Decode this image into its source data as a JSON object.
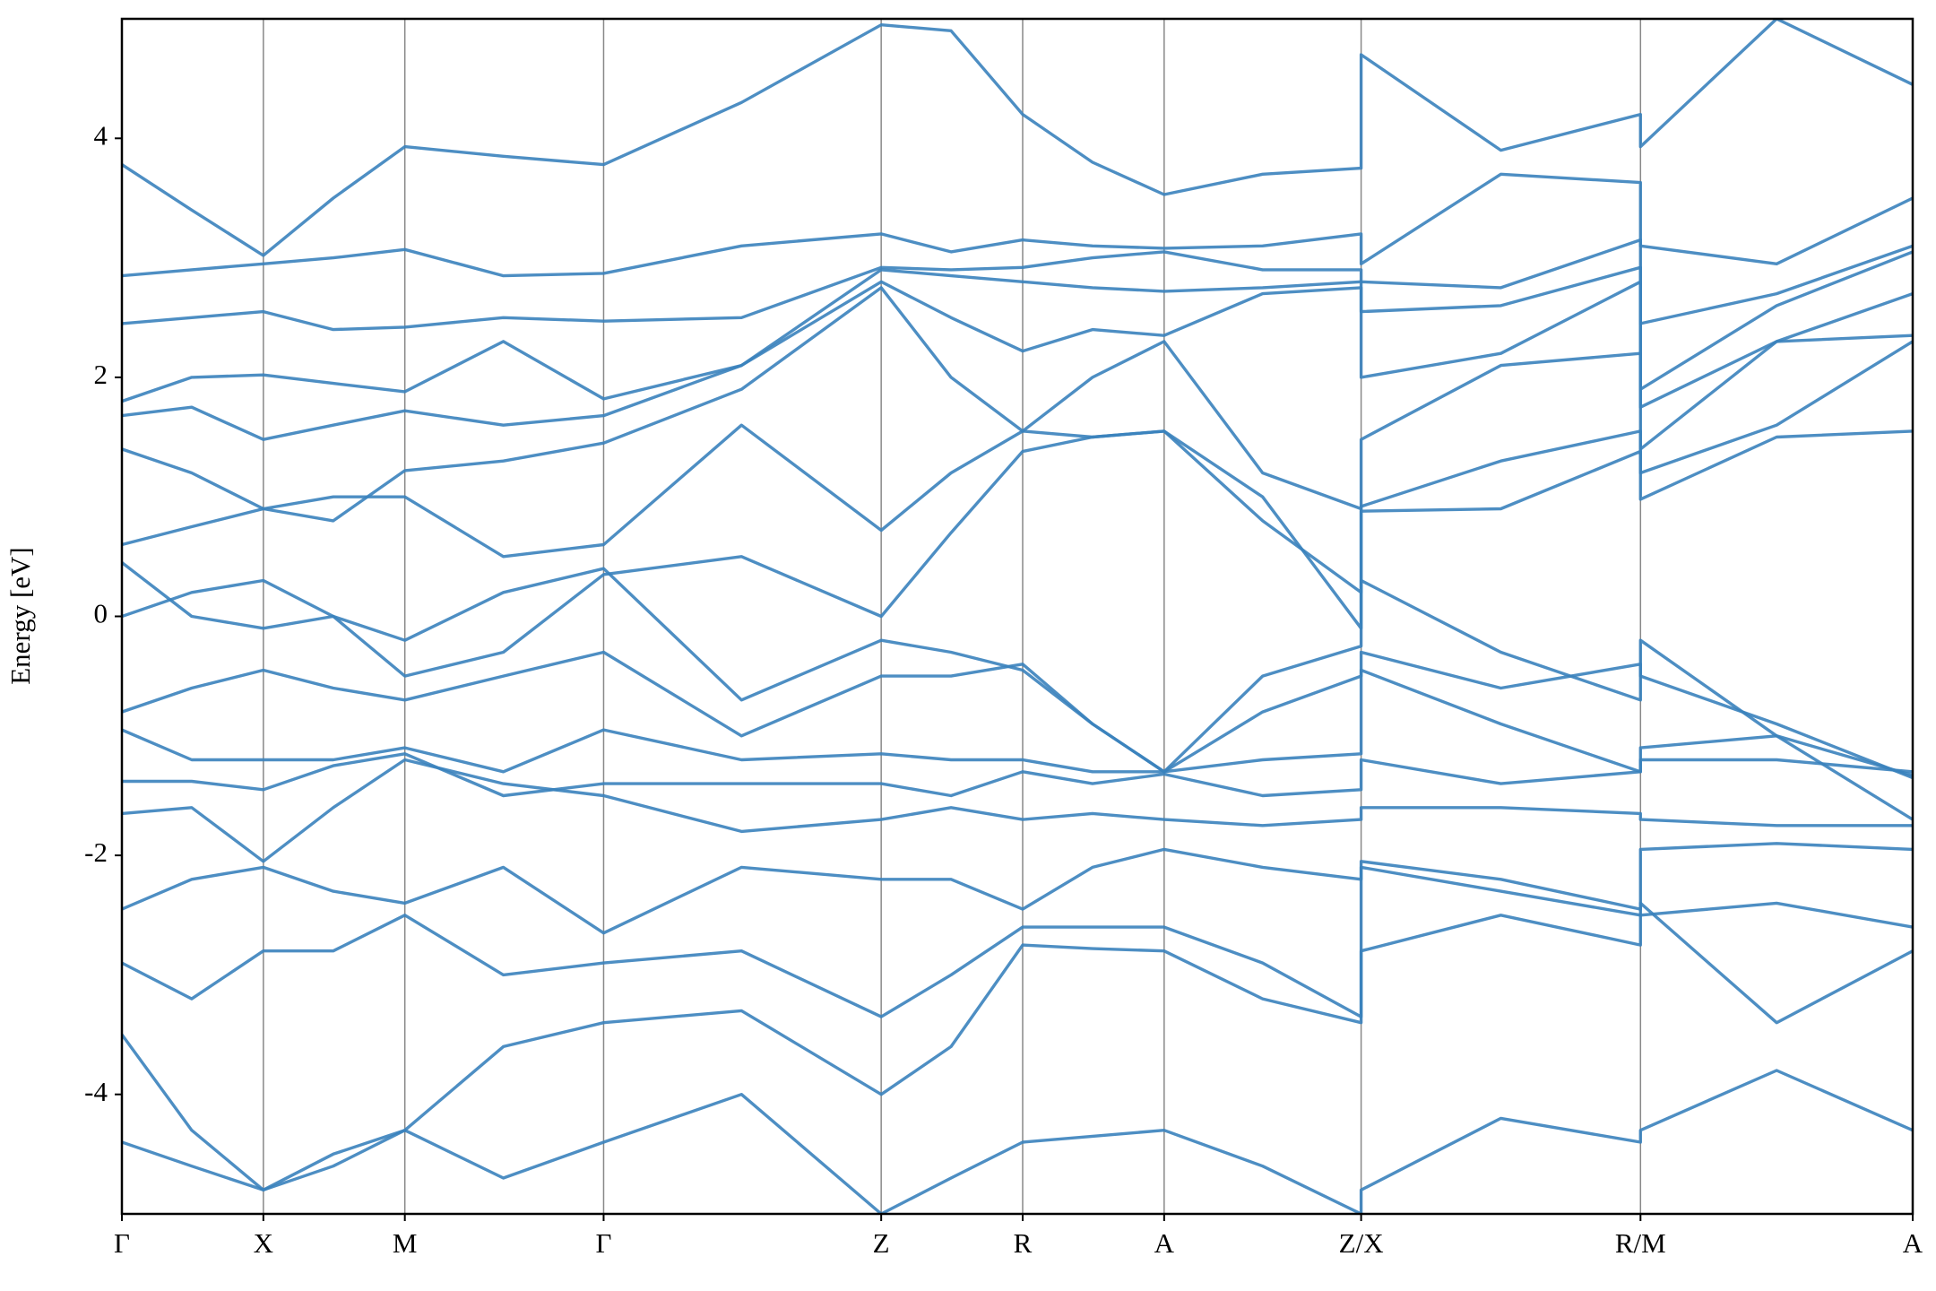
{
  "chart_data": {
    "type": "line",
    "y_label": "Energy [eV]",
    "color": "#3a82bd",
    "ylim": [
      -5,
      5
    ],
    "yticks": [
      -4,
      -2,
      0,
      2,
      4
    ],
    "xlim": [
      0,
      10
    ],
    "xticks": [
      {
        "value": 0,
        "label": "Γ"
      },
      {
        "value": 0.79,
        "label": "X"
      },
      {
        "value": 1.58,
        "label": "M"
      },
      {
        "value": 2.69,
        "label": "Γ"
      },
      {
        "value": 4.24,
        "label": "Z"
      },
      {
        "value": 5.03,
        "label": "R"
      },
      {
        "value": 5.82,
        "label": "A"
      },
      {
        "value": 6.92,
        "label": "Z/X"
      },
      {
        "value": 8.48,
        "label": "R/M"
      },
      {
        "value": 10,
        "label": "A"
      }
    ],
    "grid": true,
    "x": [
      0,
      0.39,
      0.79,
      1.18,
      1.58,
      2.13,
      2.69,
      3.46,
      4.24,
      4.63,
      5.03,
      5.42,
      5.82,
      6.37,
      6.92,
      6.92,
      7.7,
      8.48,
      8.48,
      9.24,
      10
    ],
    "series": [
      {
        "values": [
          -4.4,
          -4.6,
          -4.8,
          -4.5,
          -4.3,
          -4.7,
          -4.4,
          -4.0,
          -5.0,
          -4.7,
          -4.4,
          -4.35,
          -4.3,
          -4.6,
          -5.0,
          -4.8,
          -4.2,
          -4.4,
          -4.3,
          -3.8,
          -4.3
        ]
      },
      {
        "values": [
          -3.5,
          -4.3,
          -4.8,
          -4.6,
          -4.3,
          -3.6,
          -3.4,
          -3.3,
          -4.0,
          -3.6,
          -2.75,
          -2.78,
          -2.8,
          -3.2,
          -3.4,
          -2.8,
          -2.5,
          -2.75,
          -2.4,
          -3.4,
          -2.8
        ]
      },
      {
        "values": [
          -2.9,
          -3.2,
          -2.8,
          -2.8,
          -2.5,
          -3.0,
          -2.9,
          -2.8,
          -3.35,
          -3.0,
          -2.6,
          -2.6,
          -2.6,
          -2.9,
          -3.35,
          -2.1,
          -2.3,
          -2.5,
          -2.5,
          -2.4,
          -2.6
        ]
      },
      {
        "values": [
          -2.45,
          -2.2,
          -2.1,
          -2.3,
          -2.4,
          -2.1,
          -2.65,
          -2.1,
          -2.2,
          -2.2,
          -2.45,
          -2.1,
          -1.95,
          -2.1,
          -2.2,
          -2.05,
          -2.2,
          -2.45,
          -1.95,
          -1.9,
          -1.95
        ]
      },
      {
        "values": [
          -1.65,
          -1.6,
          -2.05,
          -1.6,
          -1.2,
          -1.4,
          -1.5,
          -1.8,
          -1.7,
          -1.6,
          -1.7,
          -1.65,
          -1.7,
          -1.75,
          -1.7,
          -1.6,
          -1.6,
          -1.65,
          -1.7,
          -1.75,
          -1.75
        ]
      },
      {
        "values": [
          -1.38,
          -1.38,
          -1.45,
          -1.25,
          -1.15,
          -1.5,
          -1.4,
          -1.4,
          -1.4,
          -1.5,
          -1.3,
          -1.4,
          -1.32,
          -1.5,
          -1.45,
          -1.2,
          -1.4,
          -1.3,
          -1.2,
          -1.2,
          -1.3
        ]
      },
      {
        "values": [
          -0.95,
          -1.2,
          -1.2,
          -1.2,
          -1.1,
          -1.3,
          -0.95,
          -1.2,
          -1.15,
          -1.2,
          -1.2,
          -1.3,
          -1.3,
          -1.2,
          -1.15,
          -0.45,
          -0.9,
          -1.3,
          -1.1,
          -1.0,
          -1.33
        ]
      },
      {
        "values": [
          -0.8,
          -0.6,
          -0.45,
          -0.6,
          -0.7,
          -0.5,
          -0.3,
          -1.0,
          -0.5,
          -0.5,
          -0.4,
          -0.9,
          -1.3,
          -0.8,
          -0.5,
          -0.3,
          -0.6,
          -0.4,
          -0.5,
          -0.9,
          -1.35
        ]
      },
      {
        "values": [
          0.0,
          0.2,
          0.3,
          0.0,
          -0.2,
          0.2,
          0.4,
          -0.7,
          -0.2,
          -0.3,
          -0.45,
          -0.9,
          -1.3,
          -0.5,
          -0.25,
          0.3,
          -0.3,
          -0.7,
          -0.2,
          -1.0,
          -1.7
        ]
      },
      {
        "values": [
          0.45,
          0.0,
          -0.1,
          0.0,
          -0.5,
          -0.3,
          0.35,
          0.5,
          0.0,
          0.7,
          1.38,
          1.5,
          1.55,
          1.0,
          -0.1,
          0.88,
          0.9,
          1.38,
          0.98,
          1.5,
          1.55
        ]
      },
      {
        "values": [
          0.6,
          0.75,
          0.9,
          1.0,
          1.0,
          0.5,
          0.6,
          1.6,
          0.72,
          1.2,
          1.55,
          1.5,
          1.55,
          0.8,
          0.2,
          0.92,
          1.3,
          1.55,
          1.2,
          1.6,
          2.3
        ]
      },
      {
        "values": [
          1.4,
          1.2,
          0.9,
          0.8,
          1.22,
          1.3,
          1.45,
          1.9,
          2.75,
          2.0,
          1.55,
          2.0,
          2.3,
          1.2,
          0.9,
          1.48,
          2.1,
          2.2,
          1.4,
          2.3,
          2.35
        ]
      },
      {
        "values": [
          1.68,
          1.75,
          1.48,
          1.6,
          1.72,
          1.6,
          1.68,
          2.1,
          2.8,
          2.5,
          2.22,
          2.4,
          2.35,
          2.7,
          2.75,
          2.0,
          2.2,
          2.8,
          1.75,
          2.3,
          2.7
        ]
      },
      {
        "values": [
          1.8,
          2.0,
          2.02,
          1.95,
          1.88,
          2.3,
          1.82,
          2.1,
          2.9,
          2.85,
          2.8,
          2.75,
          2.72,
          2.75,
          2.8,
          2.55,
          2.6,
          2.92,
          1.9,
          2.6,
          3.05
        ]
      },
      {
        "values": [
          2.45,
          2.5,
          2.55,
          2.4,
          2.42,
          2.5,
          2.47,
          2.5,
          2.92,
          2.9,
          2.92,
          3.0,
          3.05,
          2.9,
          2.9,
          2.8,
          2.75,
          3.15,
          2.45,
          2.7,
          3.1
        ]
      },
      {
        "values": [
          2.85,
          2.9,
          2.95,
          3.0,
          3.07,
          2.85,
          2.87,
          3.1,
          3.2,
          3.05,
          3.15,
          3.1,
          3.08,
          3.1,
          3.2,
          2.95,
          3.7,
          3.63,
          3.1,
          2.95,
          3.5
        ]
      },
      {
        "values": [
          3.78,
          3.4,
          3.02,
          3.5,
          3.93,
          3.85,
          3.78,
          4.3,
          4.95,
          4.9,
          4.2,
          3.8,
          3.53,
          3.7,
          3.75,
          4.7,
          3.9,
          4.2,
          3.93,
          5.0,
          4.45
        ]
      }
    ]
  }
}
